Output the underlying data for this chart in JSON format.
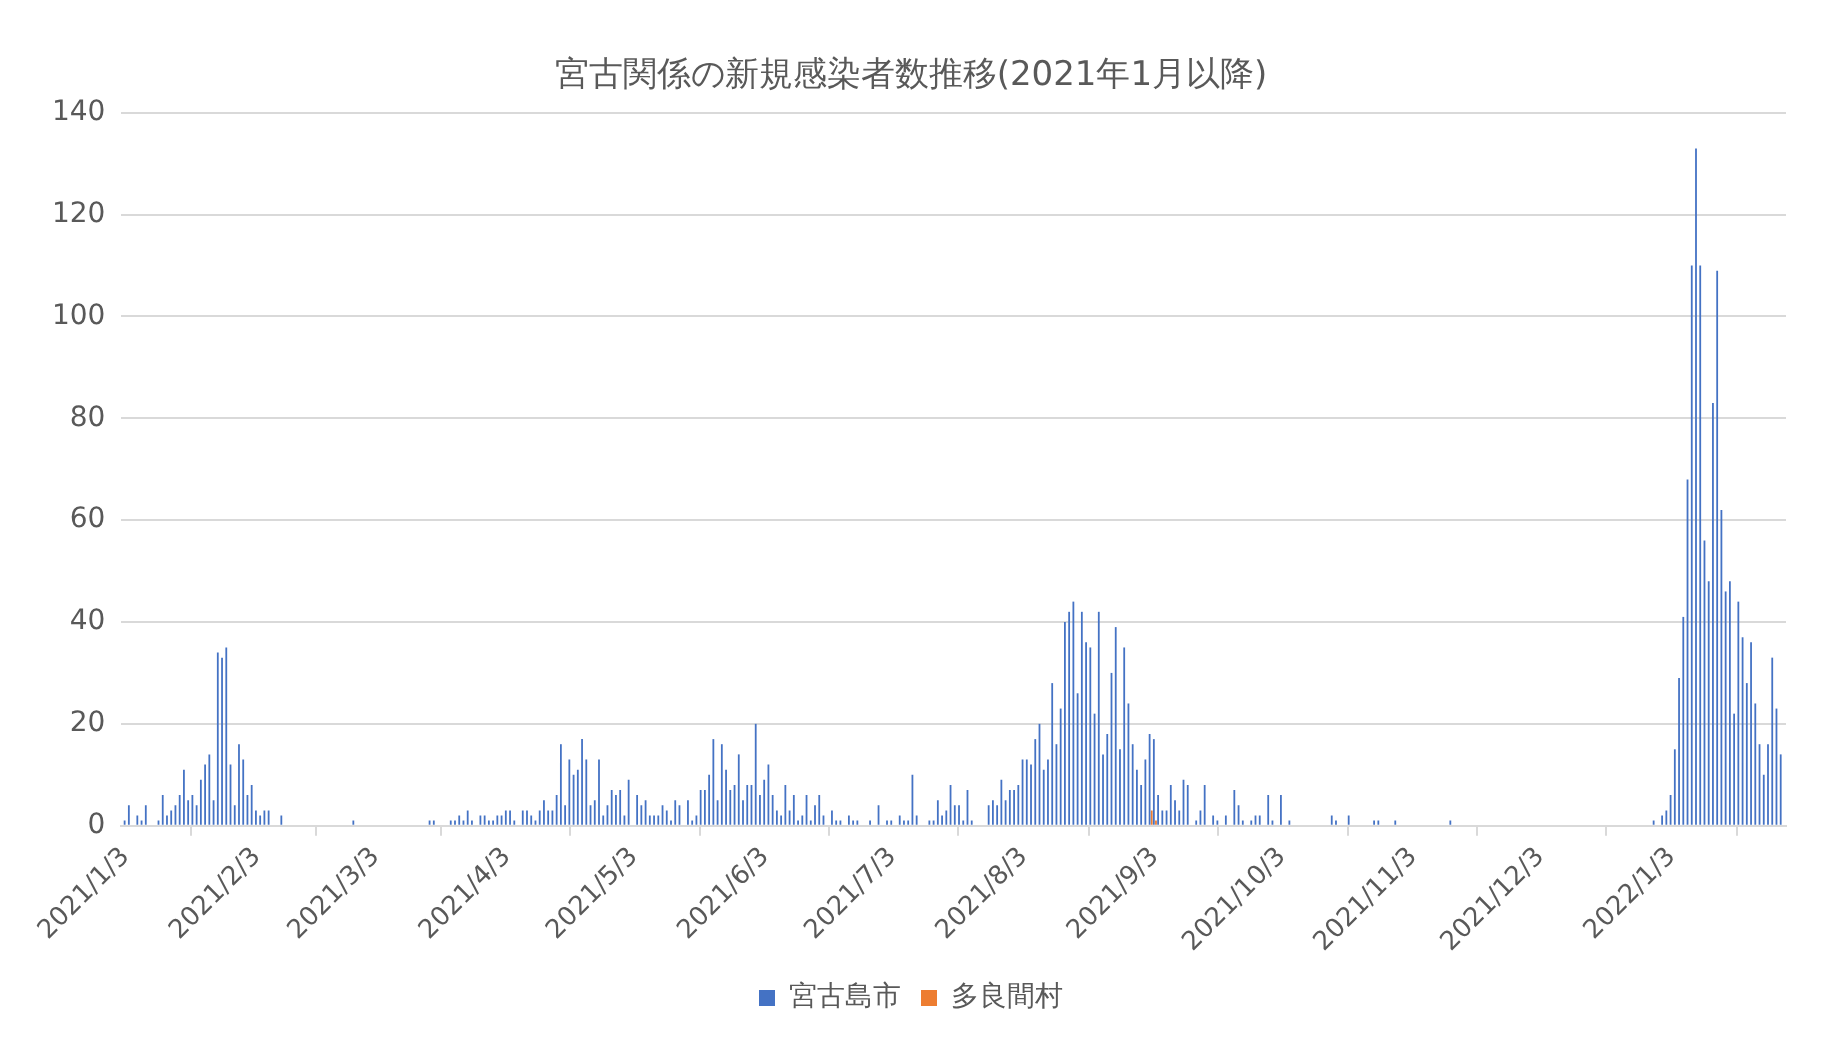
{
  "chart_data": {
    "type": "bar",
    "title": "宮古関係の新規感染者数推移(2021年1月以降)",
    "series": [
      {
        "name": "宮古島市",
        "color": "#4472c4",
        "x": [
          "2021-01-03",
          "2021-01-04",
          "2021-01-06",
          "2021-01-07",
          "2021-01-08",
          "2021-01-11",
          "2021-01-12",
          "2021-01-13",
          "2021-01-14",
          "2021-01-15",
          "2021-01-16",
          "2021-01-17",
          "2021-01-18",
          "2021-01-19",
          "2021-01-20",
          "2021-01-21",
          "2021-01-22",
          "2021-01-23",
          "2021-01-24",
          "2021-01-25",
          "2021-01-26",
          "2021-01-27",
          "2021-01-28",
          "2021-01-29",
          "2021-01-30",
          "2021-01-31",
          "2021-02-01",
          "2021-02-02",
          "2021-02-03",
          "2021-02-04",
          "2021-02-05",
          "2021-02-06",
          "2021-02-09",
          "2021-02-26",
          "2021-03-16",
          "2021-03-17",
          "2021-03-21",
          "2021-03-22",
          "2021-03-23",
          "2021-03-24",
          "2021-03-25",
          "2021-03-26",
          "2021-03-28",
          "2021-03-29",
          "2021-03-30",
          "2021-03-31",
          "2021-04-01",
          "2021-04-02",
          "2021-04-03",
          "2021-04-04",
          "2021-04-05",
          "2021-04-07",
          "2021-04-08",
          "2021-04-09",
          "2021-04-10",
          "2021-04-11",
          "2021-04-12",
          "2021-04-13",
          "2021-04-14",
          "2021-04-15",
          "2021-04-16",
          "2021-04-17",
          "2021-04-18",
          "2021-04-19",
          "2021-04-20",
          "2021-04-21",
          "2021-04-22",
          "2021-04-23",
          "2021-04-24",
          "2021-04-25",
          "2021-04-26",
          "2021-04-27",
          "2021-04-28",
          "2021-04-29",
          "2021-04-30",
          "2021-05-01",
          "2021-05-02",
          "2021-05-04",
          "2021-05-05",
          "2021-05-06",
          "2021-05-07",
          "2021-05-08",
          "2021-05-09",
          "2021-05-10",
          "2021-05-11",
          "2021-05-12",
          "2021-05-13",
          "2021-05-14",
          "2021-05-16",
          "2021-05-17",
          "2021-05-18",
          "2021-05-19",
          "2021-05-20",
          "2021-05-21",
          "2021-05-22",
          "2021-05-23",
          "2021-05-24",
          "2021-05-25",
          "2021-05-26",
          "2021-05-27",
          "2021-05-28",
          "2021-05-29",
          "2021-05-30",
          "2021-05-31",
          "2021-06-01",
          "2021-06-02",
          "2021-06-03",
          "2021-06-04",
          "2021-06-05",
          "2021-06-06",
          "2021-06-07",
          "2021-06-08",
          "2021-06-09",
          "2021-06-10",
          "2021-06-11",
          "2021-06-12",
          "2021-06-13",
          "2021-06-14",
          "2021-06-15",
          "2021-06-16",
          "2021-06-17",
          "2021-06-19",
          "2021-06-20",
          "2021-06-21",
          "2021-06-23",
          "2021-06-24",
          "2021-06-25",
          "2021-06-28",
          "2021-06-30",
          "2021-07-02",
          "2021-07-03",
          "2021-07-05",
          "2021-07-06",
          "2021-07-07",
          "2021-07-08",
          "2021-07-09",
          "2021-07-12",
          "2021-07-13",
          "2021-07-14",
          "2021-07-15",
          "2021-07-16",
          "2021-07-17",
          "2021-07-18",
          "2021-07-19",
          "2021-07-20",
          "2021-07-21",
          "2021-07-22",
          "2021-07-26",
          "2021-07-27",
          "2021-07-28",
          "2021-07-29",
          "2021-07-30",
          "2021-07-31",
          "2021-08-01",
          "2021-08-02",
          "2021-08-03",
          "2021-08-04",
          "2021-08-05",
          "2021-08-06",
          "2021-08-07",
          "2021-08-08",
          "2021-08-09",
          "2021-08-10",
          "2021-08-11",
          "2021-08-12",
          "2021-08-13",
          "2021-08-14",
          "2021-08-15",
          "2021-08-16",
          "2021-08-17",
          "2021-08-18",
          "2021-08-19",
          "2021-08-20",
          "2021-08-21",
          "2021-08-22",
          "2021-08-23",
          "2021-08-24",
          "2021-08-25",
          "2021-08-26",
          "2021-08-27",
          "2021-08-28",
          "2021-08-29",
          "2021-08-30",
          "2021-08-31",
          "2021-09-01",
          "2021-09-02",
          "2021-09-03",
          "2021-09-04",
          "2021-09-05",
          "2021-09-06",
          "2021-09-07",
          "2021-09-08",
          "2021-09-09",
          "2021-09-10",
          "2021-09-11",
          "2021-09-13",
          "2021-09-14",
          "2021-09-15",
          "2021-09-17",
          "2021-09-18",
          "2021-09-20",
          "2021-09-22",
          "2021-09-23",
          "2021-09-24",
          "2021-09-26",
          "2021-09-27",
          "2021-09-28",
          "2021-09-30",
          "2021-10-01",
          "2021-10-03",
          "2021-10-05",
          "2021-10-15",
          "2021-10-16",
          "2021-10-19",
          "2021-10-25",
          "2021-10-26",
          "2021-10-30",
          "2021-11-12",
          "2021-12-30",
          "2022-01-01",
          "2022-01-02",
          "2022-01-03",
          "2022-01-04",
          "2022-01-05",
          "2022-01-06",
          "2022-01-07",
          "2022-01-08",
          "2022-01-09",
          "2022-01-10",
          "2022-01-11",
          "2022-01-12",
          "2022-01-13",
          "2022-01-14",
          "2022-01-15",
          "2022-01-16",
          "2022-01-17",
          "2022-01-18",
          "2022-01-19",
          "2022-01-20",
          "2022-01-21",
          "2022-01-22",
          "2022-01-23",
          "2022-01-24",
          "2022-01-25",
          "2022-01-26",
          "2022-01-27",
          "2022-01-28",
          "2022-01-29"
        ],
        "values": [
          1,
          4,
          2,
          1,
          4,
          1,
          6,
          2,
          3,
          4,
          6,
          11,
          5,
          6,
          4,
          9,
          12,
          14,
          5,
          34,
          33,
          35,
          12,
          4,
          16,
          13,
          6,
          8,
          3,
          2,
          3,
          3,
          2,
          1,
          1,
          1,
          1,
          1,
          2,
          1,
          3,
          1,
          2,
          2,
          1,
          1,
          2,
          2,
          3,
          3,
          1,
          3,
          3,
          2,
          1,
          3,
          5,
          3,
          3,
          6,
          16,
          4,
          13,
          10,
          11,
          17,
          13,
          4,
          5,
          13,
          2,
          4,
          7,
          6,
          7,
          2,
          9,
          6,
          4,
          5,
          2,
          2,
          2,
          4,
          3,
          1,
          5,
          4,
          5,
          1,
          2,
          7,
          7,
          10,
          17,
          5,
          16,
          11,
          7,
          8,
          14,
          5,
          8,
          8,
          20,
          6,
          9,
          12,
          6,
          3,
          2,
          8,
          3,
          6,
          1,
          2,
          6,
          1,
          4,
          6,
          2,
          3,
          1,
          1,
          2,
          1,
          1,
          1,
          4,
          1,
          1,
          2,
          1,
          1,
          10,
          2,
          1,
          1,
          5,
          2,
          3,
          8,
          4,
          4,
          1,
          7,
          1,
          4,
          5,
          4,
          9,
          5,
          7,
          7,
          8,
          13,
          13,
          12,
          17,
          20,
          11,
          13,
          28,
          16,
          23,
          40,
          42,
          44,
          26,
          42,
          36,
          35,
          22,
          42,
          14,
          18,
          30,
          39,
          15,
          35,
          24,
          16,
          11,
          8,
          13,
          18,
          17,
          6,
          3,
          3,
          8,
          5,
          3,
          9,
          8,
          1,
          3,
          8,
          2,
          1,
          2,
          7,
          4,
          1,
          1,
          2,
          2,
          6,
          1,
          6,
          1,
          2,
          1,
          2,
          1,
          1,
          1,
          1,
          1,
          2,
          3,
          6,
          15,
          29,
          41,
          68,
          110,
          133,
          110,
          56,
          48,
          83,
          109,
          62,
          46,
          48,
          22,
          44,
          37,
          28,
          36,
          24,
          16,
          10,
          16,
          33,
          23,
          14
        ]
      },
      {
        "name": "多良間村",
        "color": "#ed7d31",
        "x": [
          "2021-09-02",
          "2021-09-03"
        ],
        "values": [
          3,
          1
        ]
      }
    ],
    "xlim": [
      "2021-01-02",
      "2022-01-30"
    ],
    "xticks": [
      {
        "value": "2021-01-03",
        "label": "2021/1/3"
      },
      {
        "value": "2021-02-03",
        "label": "2021/2/3"
      },
      {
        "value": "2021-03-03",
        "label": "2021/3/3"
      },
      {
        "value": "2021-04-03",
        "label": "2021/4/3"
      },
      {
        "value": "2021-05-03",
        "label": "2021/5/3"
      },
      {
        "value": "2021-06-03",
        "label": "2021/6/3"
      },
      {
        "value": "2021-07-03",
        "label": "2021/7/3"
      },
      {
        "value": "2021-08-03",
        "label": "2021/8/3"
      },
      {
        "value": "2021-09-03",
        "label": "2021/9/3"
      },
      {
        "value": "2021-10-03",
        "label": "2021/10/3"
      },
      {
        "value": "2021-11-03",
        "label": "2021/11/3"
      },
      {
        "value": "2021-12-03",
        "label": "2021/12/3"
      },
      {
        "value": "2022-01-03",
        "label": "2022/1/3"
      }
    ],
    "ylim": [
      0,
      140
    ],
    "yticks": [
      0,
      20,
      40,
      60,
      80,
      100,
      120,
      140
    ],
    "grid": "y",
    "legend": "bottom"
  }
}
